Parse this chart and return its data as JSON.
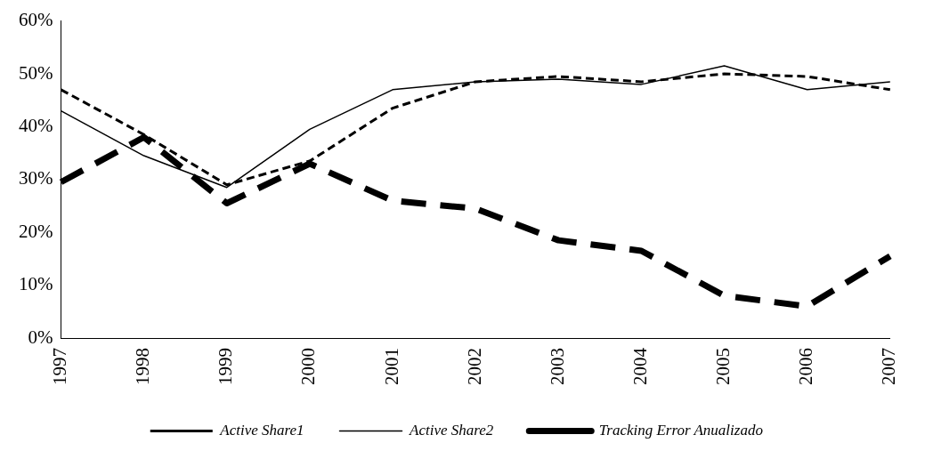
{
  "chart_data": {
    "type": "line",
    "categories": [
      "1997",
      "1998",
      "1999",
      "2000",
      "2001",
      "2002",
      "2003",
      "2004",
      "2005",
      "2006",
      "2007"
    ],
    "series": [
      {
        "name": "Active Share1",
        "color": "#000000",
        "line_style": "dashed",
        "values": [
          47,
          38.5,
          29,
          33.5,
          43.5,
          48.5,
          49.5,
          48.5,
          50,
          49.5,
          47
        ]
      },
      {
        "name": "Active Share2",
        "color": "#000000",
        "line_style": "solid",
        "values": [
          43,
          34.5,
          28.5,
          39.5,
          47,
          48.5,
          49,
          48,
          51.5,
          47,
          48.5
        ]
      },
      {
        "name": "Tracking Error Anualizado",
        "color": "#000000",
        "line_style": "dashed",
        "values": [
          29.5,
          38,
          25.5,
          33,
          26,
          24.5,
          18.5,
          16.5,
          8,
          6,
          15.5
        ]
      }
    ],
    "ylim": [
      0,
      60
    ],
    "yticks": [
      {
        "value": 0,
        "label": "0%"
      },
      {
        "value": 10,
        "label": "10%"
      },
      {
        "value": 20,
        "label": "20%"
      },
      {
        "value": 30,
        "label": "30%"
      },
      {
        "value": 40,
        "label": "40%"
      },
      {
        "value": 50,
        "label": "50%"
      },
      {
        "value": 60,
        "label": "60%"
      }
    ],
    "grid": false,
    "legend": "bottom",
    "marker": "none"
  }
}
